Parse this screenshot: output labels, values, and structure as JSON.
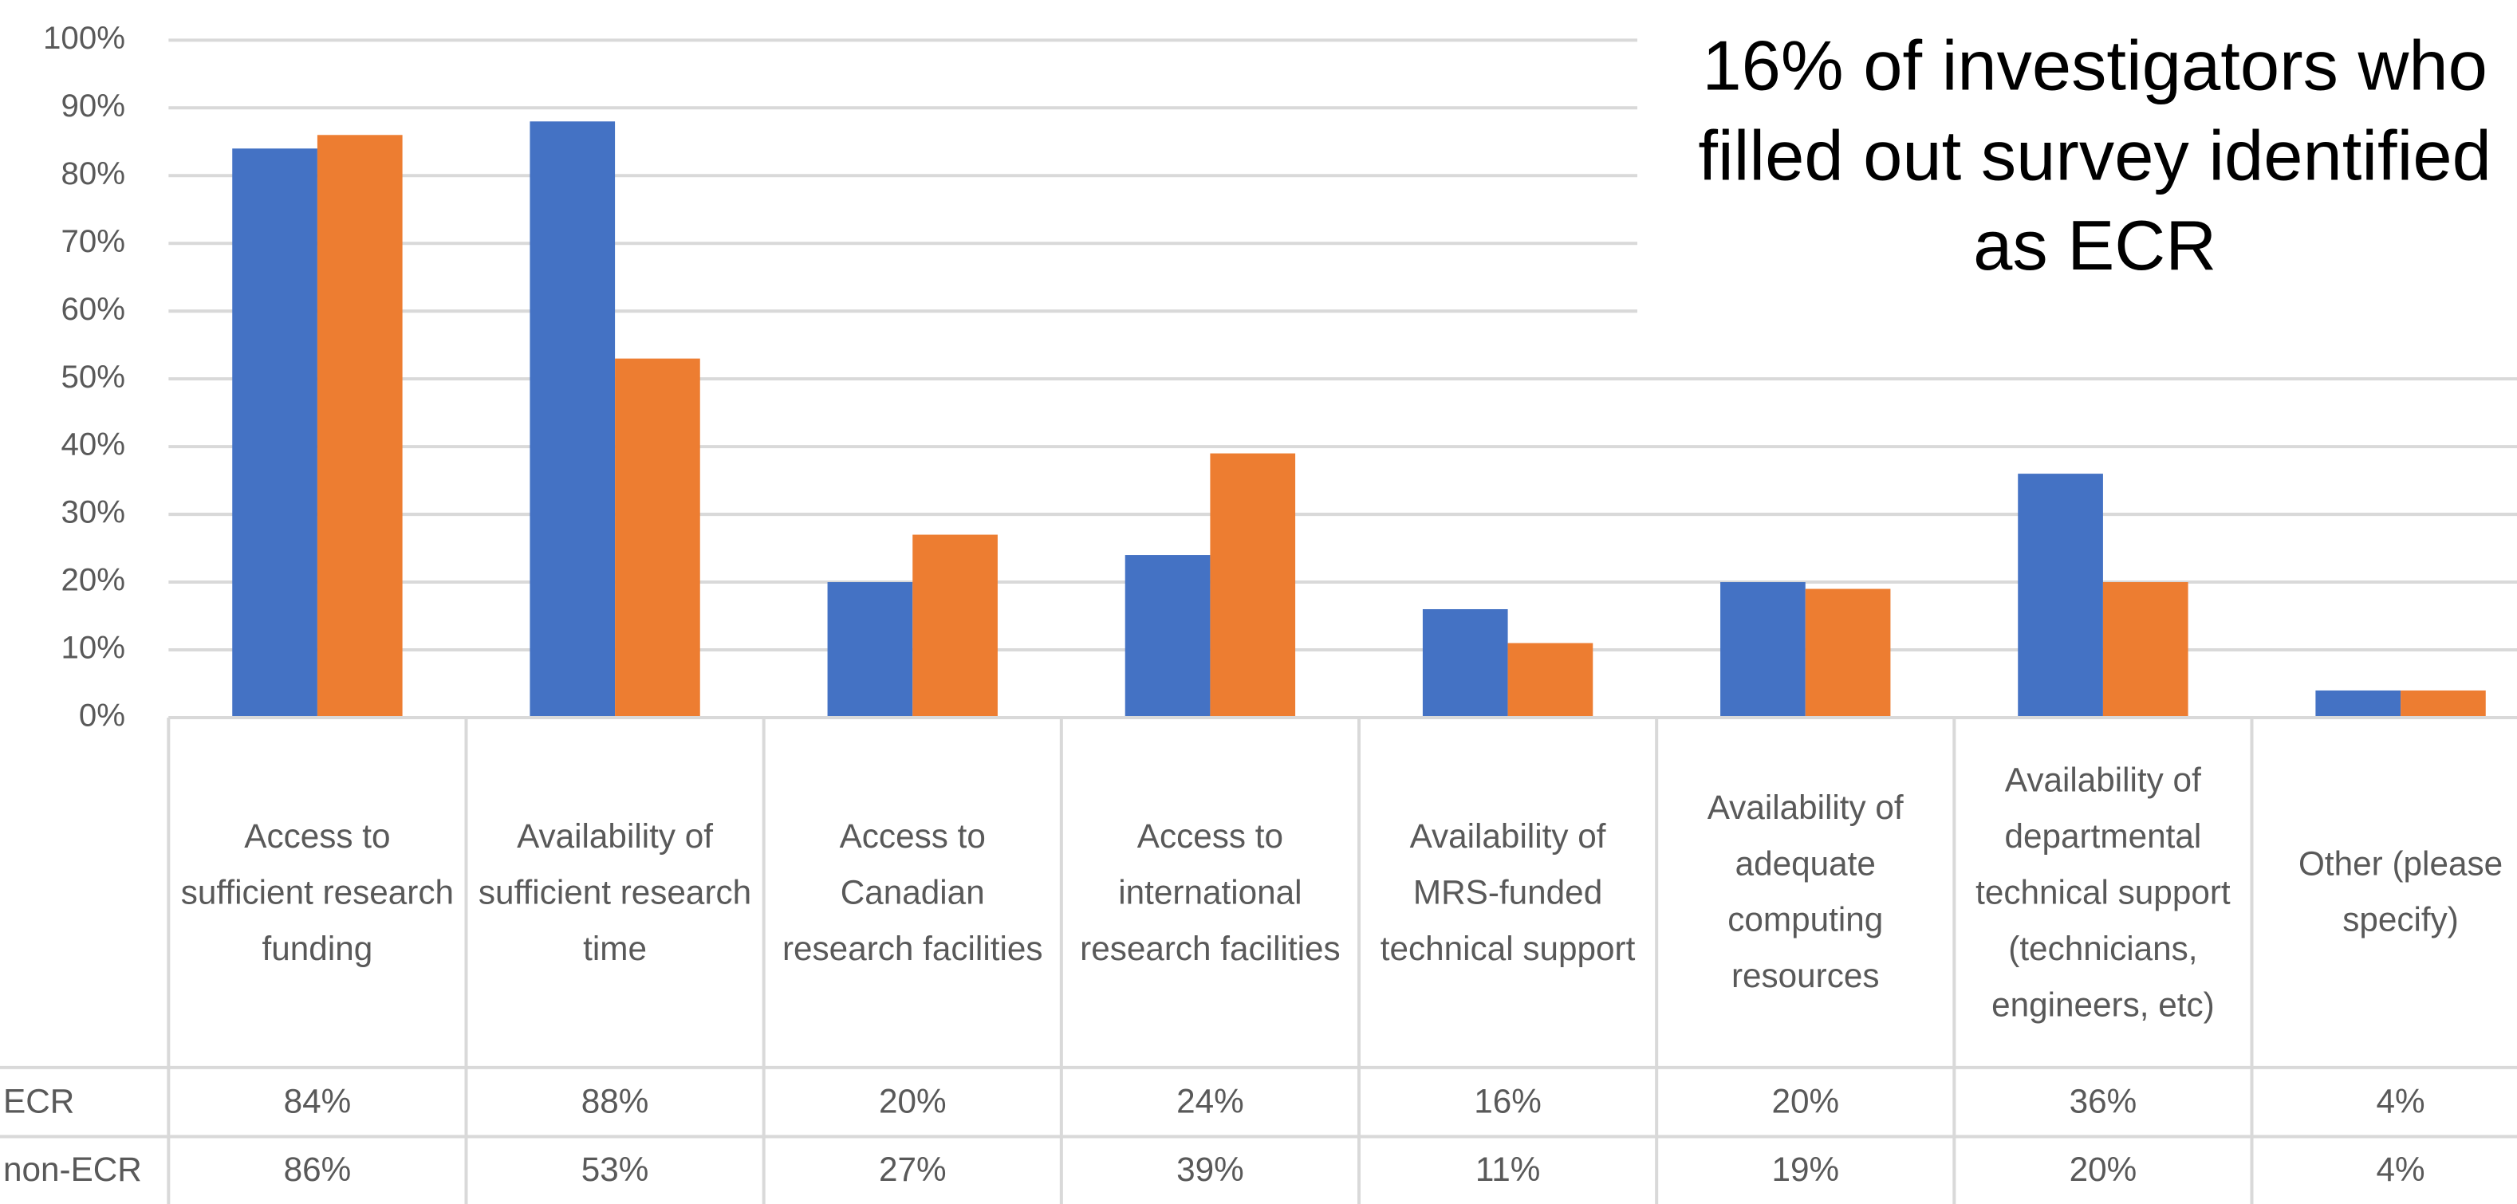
{
  "chart_data": {
    "type": "bar",
    "annotation": "16% of investigators who filled out survey identified as ECR",
    "categories": [
      "Access to sufficient research funding",
      "Availability of sufficient research time",
      "Access to Canadian research facilities",
      "Access to international research facilities",
      "Availability of MRS-funded technical support",
      "Availability of adequate computing resources",
      "Availability of departmental technical support (technicians, engineers, etc)",
      "Other (please specify)"
    ],
    "series": [
      {
        "name": "ECR",
        "color": "#4472c4",
        "values": [
          84,
          88,
          20,
          24,
          16,
          20,
          36,
          4
        ],
        "value_labels": [
          "84%",
          "88%",
          "20%",
          "24%",
          "16%",
          "20%",
          "36%",
          "4%"
        ]
      },
      {
        "name": "non-ECR",
        "color": "#ed7d31",
        "values": [
          86,
          53,
          27,
          39,
          11,
          19,
          20,
          4
        ],
        "value_labels": [
          "86%",
          "53%",
          "27%",
          "39%",
          "11%",
          "19%",
          "20%",
          "4%"
        ]
      }
    ],
    "ylim": [
      0,
      100
    ],
    "yticks": [
      {
        "value": 0,
        "label": "0%"
      },
      {
        "value": 10,
        "label": "10%"
      },
      {
        "value": 20,
        "label": "20%"
      },
      {
        "value": 30,
        "label": "30%"
      },
      {
        "value": 40,
        "label": "40%"
      },
      {
        "value": 50,
        "label": "50%"
      },
      {
        "value": 60,
        "label": "60%"
      },
      {
        "value": 70,
        "label": "70%"
      },
      {
        "value": 80,
        "label": "80%"
      },
      {
        "value": 90,
        "label": "90%"
      },
      {
        "value": 100,
        "label": "100%"
      }
    ],
    "grid": true
  }
}
